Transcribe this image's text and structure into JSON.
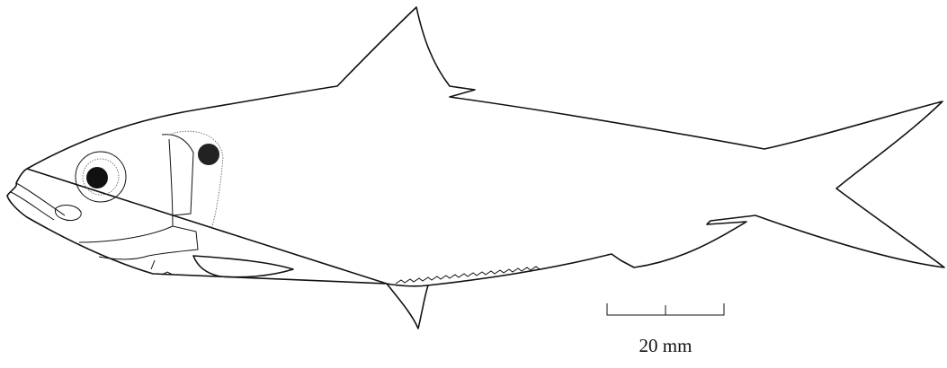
{
  "scale_bar": {
    "label": "20 mm"
  }
}
